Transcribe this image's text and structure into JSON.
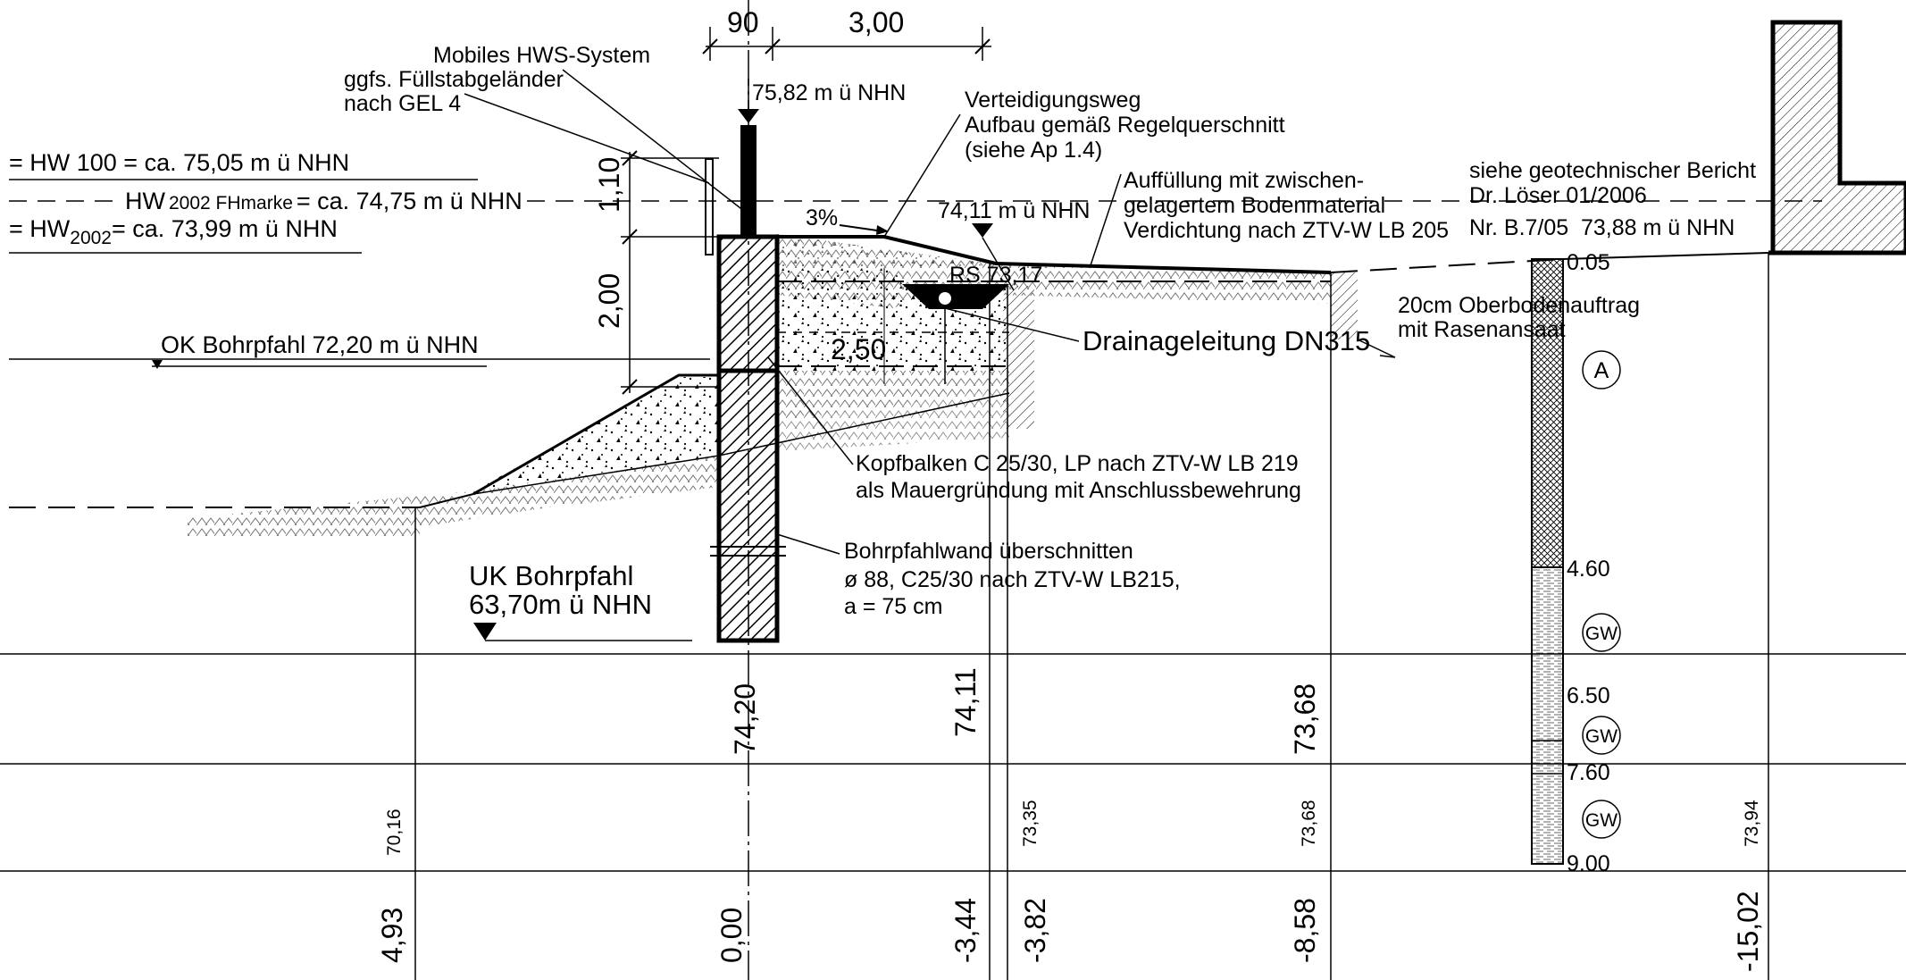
{
  "dimensions": {
    "d90": "90",
    "d300": "3,00",
    "d110": "1,10",
    "d200": "2,00",
    "d250": "2,50"
  },
  "water_levels": {
    "hw100": "= HW 100  =  ca. 75,05  m ü NHN",
    "hw2002_fh_a": "HW",
    "hw2002_fh_b": "2002 FHmarke",
    "hw2002_fh_c": "= ca.  74,75 m ü NHN",
    "hw2002_a": "= HW",
    "hw2002_b": "2002",
    "hw2002_c": "= ca.  73,99  m ü NHN"
  },
  "labels": {
    "hws1": "Mobiles HWS-System",
    "hws2": "ggfs. Füllstabgeländer",
    "hws3": "nach GEL 4",
    "top_wall": "75,82 m ü NHN",
    "vw1": "Verteidigungsweg",
    "vw2": "Aufbau gemäß Regelquerschnitt",
    "vw3": "(siehe Ap 1.4)",
    "slope": "3%",
    "crest": "74,11 m ü NHN",
    "fill1": "Auffüllung mit zwischen-",
    "fill2": "gelagertem Bodenmaterial",
    "fill3": "Verdichtung nach ZTV-W LB 205",
    "geo1": "siehe geotechnischer Bericht",
    "geo2": "Dr. Löser 01/2006",
    "geo3a": "Nr. B.7/05",
    "geo3b": "73,88 m ü NHN",
    "rs": "RS 73,17",
    "drain": "Drainageleitung DN315",
    "topsoil1": "20cm Oberbodenauftrag",
    "topsoil2": "mit Rasenansaat",
    "ok_pile": "OK Bohrpfahl 72,20 m ü NHN",
    "kopf1": "Kopfbalken C 25/30, LP nach ZTV-W LB 219",
    "kopf2": "als Mauergründung mit Anschlussbewehrung",
    "pw1": "Bohrpfahlwand überschnitten",
    "pw2": "ø 88,  C25/30 nach ZTV-W LB215,",
    "pw3": "a = 75 cm",
    "uk1": "UK Bohrpfahl",
    "uk2": "63,70m ü NHN"
  },
  "borehole": {
    "id": "A",
    "depths": [
      "0.05",
      "4.60",
      "6.50",
      "7.60",
      "9.00"
    ],
    "gw": "GW"
  },
  "table": {
    "row1": [
      "74,20",
      "74,11",
      "73,68"
    ],
    "row2": [
      "70,16",
      "73,35",
      "73,68",
      "73,94"
    ],
    "row3": [
      "4,93",
      "0,00",
      "-3,44",
      "-3,82",
      "-8,58",
      "-15,02"
    ]
  }
}
